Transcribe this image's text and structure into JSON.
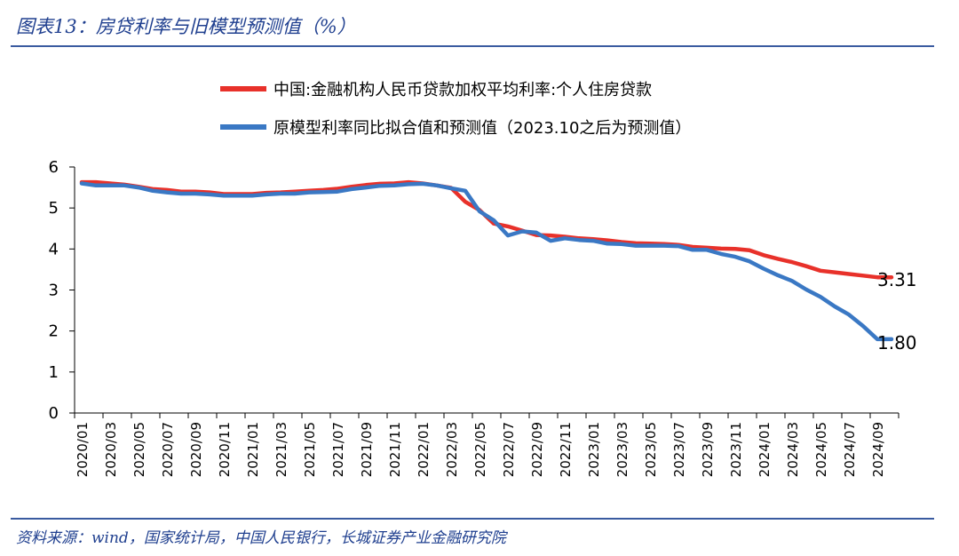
{
  "header": {
    "title": "图表13：房贷利率与旧模型预测值（%）"
  },
  "footer": {
    "source": "资料来源：wind，国家统计局，中国人民银行，长城证券产业金融研究院"
  },
  "chart_data": {
    "type": "line",
    "title": "图表13：房贷利率与旧模型预测值（%）",
    "xlabel": "",
    "ylabel": "",
    "ylim": [
      0,
      6
    ],
    "yticks": [
      0,
      1,
      2,
      3,
      4,
      5,
      6
    ],
    "grid": false,
    "legend_position": "top",
    "x": [
      "2020/01",
      "2020/02",
      "2020/03",
      "2020/04",
      "2020/05",
      "2020/06",
      "2020/07",
      "2020/08",
      "2020/09",
      "2020/10",
      "2020/11",
      "2020/12",
      "2021/01",
      "2021/02",
      "2021/03",
      "2021/04",
      "2021/05",
      "2021/06",
      "2021/07",
      "2021/08",
      "2021/09",
      "2021/10",
      "2021/11",
      "2021/12",
      "2022/01",
      "2022/02",
      "2022/03",
      "2022/04",
      "2022/05",
      "2022/06",
      "2022/07",
      "2022/08",
      "2022/09",
      "2022/10",
      "2022/11",
      "2022/12",
      "2023/01",
      "2023/02",
      "2023/03",
      "2023/04",
      "2023/05",
      "2023/06",
      "2023/07",
      "2023/08",
      "2023/09",
      "2023/10",
      "2023/11",
      "2023/12",
      "2024/01",
      "2024/02",
      "2024/03",
      "2024/04",
      "2024/05",
      "2024/06",
      "2024/07",
      "2024/08",
      "2024/09",
      "2024/10"
    ],
    "xtick_labels": [
      "2020/01",
      "2020/03",
      "2020/05",
      "2020/07",
      "2020/09",
      "2020/11",
      "2021/01",
      "2021/03",
      "2021/05",
      "2021/07",
      "2021/09",
      "2021/11",
      "2022/01",
      "2022/03",
      "2022/05",
      "2022/07",
      "2022/09",
      "2022/11",
      "2023/01",
      "2023/03",
      "2023/05",
      "2023/07",
      "2023/09",
      "2023/11",
      "2024/01",
      "2024/03",
      "2024/05",
      "2024/07",
      "2024/09"
    ],
    "series": [
      {
        "name": "中国:金融机构人民币贷款加权平均利率:个人住房贷款",
        "color": "#e8312a",
        "values": [
          5.63,
          5.63,
          5.6,
          5.57,
          5.52,
          5.46,
          5.44,
          5.4,
          5.4,
          5.38,
          5.34,
          5.34,
          5.34,
          5.37,
          5.38,
          5.4,
          5.42,
          5.44,
          5.47,
          5.52,
          5.56,
          5.59,
          5.6,
          5.63,
          5.6,
          5.55,
          5.49,
          5.15,
          4.95,
          4.62,
          4.55,
          4.45,
          4.34,
          4.33,
          4.3,
          4.26,
          4.24,
          4.21,
          4.17,
          4.14,
          4.13,
          4.12,
          4.1,
          4.05,
          4.03,
          4.01,
          4.0,
          3.97,
          3.85,
          3.76,
          3.68,
          3.58,
          3.47,
          3.43,
          3.39,
          3.35,
          3.31,
          3.31
        ]
      },
      {
        "name": "原模型利率同比拟合值和预测值（2023.10之后为预测值）",
        "color": "#3a78c4",
        "values": [
          5.6,
          5.55,
          5.55,
          5.55,
          5.5,
          5.42,
          5.38,
          5.35,
          5.35,
          5.33,
          5.3,
          5.3,
          5.3,
          5.33,
          5.35,
          5.35,
          5.38,
          5.39,
          5.4,
          5.46,
          5.5,
          5.54,
          5.55,
          5.58,
          5.59,
          5.55,
          5.48,
          5.42,
          4.92,
          4.7,
          4.33,
          4.43,
          4.4,
          4.2,
          4.26,
          4.22,
          4.2,
          4.13,
          4.12,
          4.08,
          4.08,
          4.08,
          4.07,
          3.98,
          3.98,
          3.88,
          3.81,
          3.7,
          3.52,
          3.36,
          3.22,
          3.01,
          2.83,
          2.6,
          2.4,
          2.12,
          1.8,
          1.8
        ]
      }
    ],
    "end_labels": [
      "3.31",
      "1.80"
    ]
  }
}
